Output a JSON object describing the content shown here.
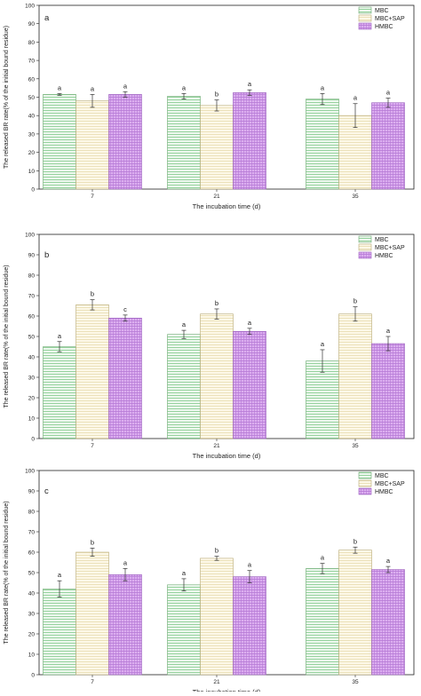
{
  "chart_data": [
    {
      "type": "bar",
      "panel_label": "a",
      "xlabel": "The incubation time (d)",
      "ylabel": "The released BR rate(% of the initial bound residue)",
      "categories": [
        "7",
        "21",
        "35"
      ],
      "ylim": [
        0,
        100
      ],
      "yticks": [
        "0",
        "10",
        "20",
        "30",
        "40",
        "50",
        "60",
        "70",
        "80",
        "90",
        "100"
      ],
      "legend_position": "top-right",
      "series": [
        {
          "name": "MBC",
          "values": [
            51.5,
            50.5,
            49
          ],
          "errors": [
            0.5,
            1.5,
            3
          ],
          "letters": [
            "a",
            "a",
            "a"
          ]
        },
        {
          "name": "MBC+SAP",
          "values": [
            48,
            45.5,
            40
          ],
          "errors": [
            3.5,
            3,
            6.5
          ],
          "letters": [
            "a",
            "b",
            "a"
          ]
        },
        {
          "name": "HMBC",
          "values": [
            51.5,
            52.5,
            47
          ],
          "errors": [
            1.5,
            1.5,
            2.5
          ],
          "letters": [
            "a",
            "a",
            "a"
          ]
        }
      ]
    },
    {
      "type": "bar",
      "panel_label": "b",
      "xlabel": "The incubation time (d)",
      "ylabel": "The released BR rate(% of the initial bound residue)",
      "categories": [
        "7",
        "21",
        "35"
      ],
      "ylim": [
        0,
        100
      ],
      "yticks": [
        "0",
        "10",
        "20",
        "30",
        "40",
        "50",
        "60",
        "70",
        "80",
        "90",
        "100"
      ],
      "legend_position": "top-right",
      "series": [
        {
          "name": "MBC",
          "values": [
            45,
            51,
            38
          ],
          "errors": [
            2.5,
            2,
            5.5
          ],
          "letters": [
            "a",
            "a",
            "a"
          ]
        },
        {
          "name": "MBC+SAP",
          "values": [
            65.5,
            61,
            61
          ],
          "errors": [
            2.5,
            2.5,
            3.5
          ],
          "letters": [
            "b",
            "b",
            "b"
          ]
        },
        {
          "name": "HMBC",
          "values": [
            59,
            52.5,
            46.5
          ],
          "errors": [
            1.5,
            1.5,
            3.5
          ],
          "letters": [
            "c",
            "a",
            "a"
          ]
        }
      ]
    },
    {
      "type": "bar",
      "panel_label": "c",
      "xlabel": "The incubation time (d)",
      "ylabel": "The released BR rate(% of the initial bound residue)",
      "categories": [
        "7",
        "21",
        "35"
      ],
      "ylim": [
        0,
        100
      ],
      "yticks": [
        "0",
        "10",
        "20",
        "30",
        "40",
        "50",
        "60",
        "70",
        "80",
        "90",
        "100"
      ],
      "legend_position": "top-right",
      "series": [
        {
          "name": "MBC",
          "values": [
            42,
            44,
            52
          ],
          "errors": [
            4,
            3,
            2.5
          ],
          "letters": [
            "a",
            "a",
            "a"
          ]
        },
        {
          "name": "MBC+SAP",
          "values": [
            60,
            57,
            61
          ],
          "errors": [
            2,
            1,
            1.5
          ],
          "letters": [
            "b",
            "b",
            "b"
          ]
        },
        {
          "name": "HMBC",
          "values": [
            49,
            48,
            51.5
          ],
          "errors": [
            3,
            3,
            1.5
          ],
          "letters": [
            "a",
            "a",
            "a"
          ]
        }
      ]
    }
  ],
  "colors": {
    "MBC": {
      "fill": "#eef8ef",
      "hatch": "#7fc98a"
    },
    "MBC+SAP": {
      "fill": "#fdf8e8",
      "hatch": "#e7dcae"
    },
    "HMBC": {
      "fill": "#dcaef0",
      "hatch": "#b67ad6"
    }
  }
}
